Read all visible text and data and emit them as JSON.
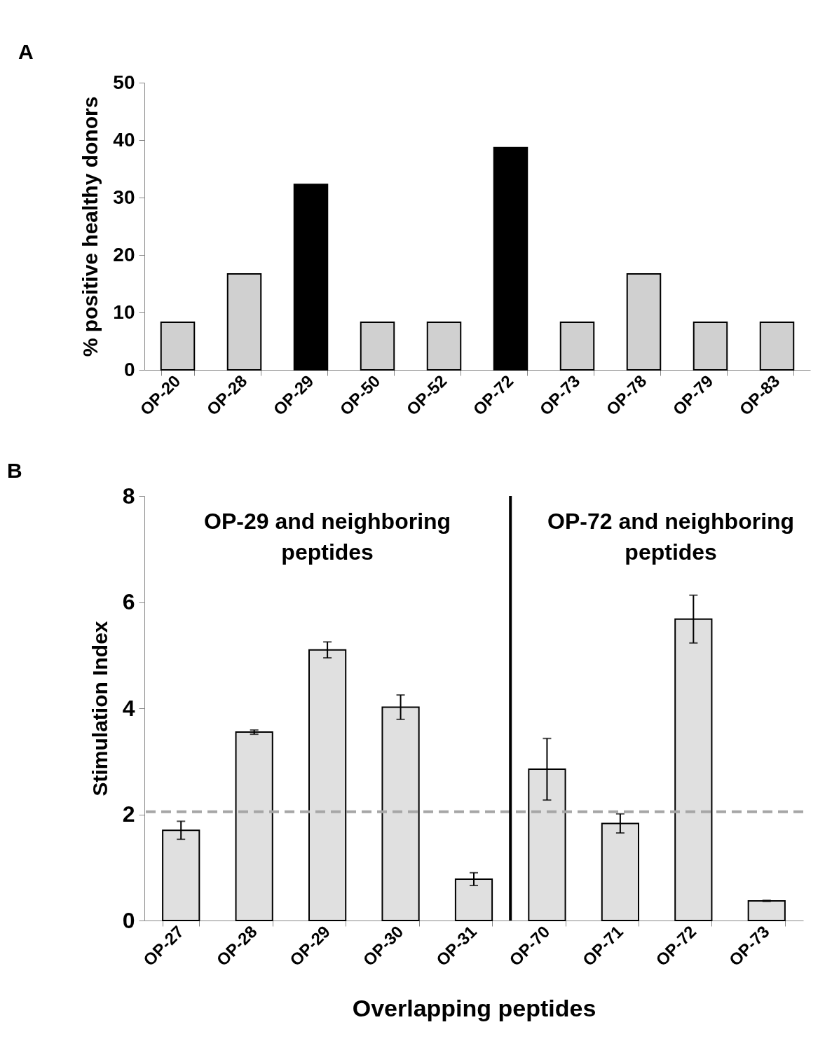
{
  "chart_data": [
    {
      "type": "bar",
      "ylabel": "% positive healthy donors",
      "annotations": [
        "A"
      ],
      "categories": [
        "OP-20",
        "OP-28",
        "OP-29",
        "OP-50",
        "OP-52",
        "OP-72",
        "OP-73",
        "OP-78",
        "OP-79",
        "OP-83"
      ],
      "values": [
        8.3,
        16.7,
        32.3,
        8.3,
        8.3,
        38.7,
        8.3,
        16.7,
        8.3,
        8.3
      ],
      "colors": [
        "#d0d0d0",
        "#d0d0d0",
        "#000000",
        "#d0d0d0",
        "#d0d0d0",
        "#000000",
        "#d0d0d0",
        "#d0d0d0",
        "#d0d0d0",
        "#d0d0d0"
      ],
      "ylim": [
        0,
        50
      ],
      "yticks": [
        0,
        10,
        20,
        30,
        40,
        50
      ],
      "grid": false
    },
    {
      "type": "bar",
      "xlabel": "Overlapping peptides",
      "ylabel": "Stimulation Index",
      "annotations": [
        "B",
        "OP-29 and neighboring peptides",
        "OP-72 and neighboring peptides"
      ],
      "categories": [
        "OP-27",
        "OP-28",
        "OP-29",
        "OP-30",
        "OP-31",
        "OP-70",
        "OP-71",
        "OP-72",
        "OP-73"
      ],
      "values": [
        1.7,
        3.55,
        5.1,
        4.02,
        0.78,
        2.85,
        1.83,
        5.68,
        0.37
      ],
      "errors": [
        0.17,
        0.04,
        0.15,
        0.23,
        0.12,
        0.58,
        0.18,
        0.45,
        0.01
      ],
      "color": "#e0e0e0",
      "ylim": [
        0,
        8
      ],
      "yticks": [
        0,
        2,
        4,
        6,
        8
      ],
      "grid": false,
      "ref_lines": [
        {
          "axis": "y",
          "value": 2.05,
          "color": "#a6a6a6",
          "line_style": "dashed"
        },
        {
          "axis": "x",
          "value": "OP-70",
          "color": "#000000",
          "line_style": "solid"
        }
      ]
    }
  ]
}
